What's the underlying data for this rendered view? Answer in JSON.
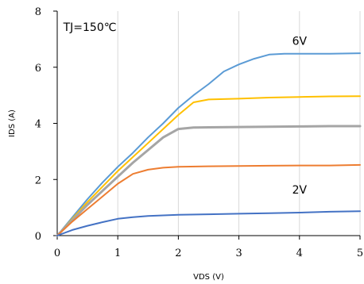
{
  "chart_data": {
    "type": "line",
    "xlabel": "VDS (V)",
    "ylabel": "IDS (A)",
    "xlim": [
      0,
      5
    ],
    "ylim": [
      0,
      8
    ],
    "x_ticks": [
      "0",
      "1",
      "2",
      "3",
      "4",
      "5"
    ],
    "y_ticks": [
      "0",
      "2",
      "4",
      "6",
      "8"
    ],
    "grid": "vertical",
    "annotations": [
      {
        "text": "TJ=150℃",
        "x": 0.1,
        "y": 7.3
      },
      {
        "text": "6V",
        "x": 3.88,
        "y": 6.8
      },
      {
        "text": "2V",
        "x": 3.88,
        "y": 1.5
      }
    ],
    "series": [
      {
        "color": "#5b9bd5",
        "width": 2,
        "x": [
          0,
          0.25,
          0.5,
          0.75,
          1,
          1.25,
          1.5,
          1.75,
          2,
          2.25,
          2.5,
          2.75,
          3,
          3.25,
          3.5,
          3.75,
          4,
          4.5,
          5
        ],
        "y": [
          0,
          0.65,
          1.3,
          1.9,
          2.45,
          2.95,
          3.5,
          4.0,
          4.55,
          5.0,
          5.4,
          5.85,
          6.1,
          6.3,
          6.45,
          6.48,
          6.48,
          6.48,
          6.5
        ]
      },
      {
        "color": "#ffc000",
        "width": 2,
        "x": [
          0,
          0.25,
          0.5,
          0.75,
          1,
          1.25,
          1.5,
          1.75,
          2,
          2.25,
          2.5,
          3,
          3.5,
          4,
          4.5,
          5
        ],
        "y": [
          0,
          0.6,
          1.2,
          1.75,
          2.3,
          2.8,
          3.3,
          3.8,
          4.3,
          4.75,
          4.85,
          4.88,
          4.92,
          4.94,
          4.96,
          4.97
        ]
      },
      {
        "color": "#a5a5a5",
        "width": 3,
        "x": [
          0,
          0.25,
          0.5,
          0.75,
          1,
          1.25,
          1.5,
          1.75,
          2,
          2.25,
          2.5,
          3,
          3.5,
          4,
          4.5,
          5
        ],
        "y": [
          0,
          0.55,
          1.1,
          1.6,
          2.1,
          2.6,
          3.05,
          3.5,
          3.8,
          3.85,
          3.86,
          3.87,
          3.88,
          3.89,
          3.9,
          3.9
        ]
      },
      {
        "color": "#ed7d31",
        "width": 2,
        "x": [
          0,
          0.25,
          0.5,
          0.75,
          1,
          1.25,
          1.5,
          1.75,
          2,
          2.5,
          3,
          3.5,
          4,
          4.5,
          5
        ],
        "y": [
          0,
          0.5,
          0.95,
          1.4,
          1.85,
          2.2,
          2.35,
          2.42,
          2.45,
          2.47,
          2.48,
          2.49,
          2.5,
          2.5,
          2.52
        ]
      },
      {
        "color": "#4472c4",
        "width": 2,
        "x": [
          0,
          0.25,
          0.5,
          0.75,
          1,
          1.25,
          1.5,
          2,
          2.5,
          3,
          3.5,
          4,
          4.5,
          5
        ],
        "y": [
          0,
          0.2,
          0.35,
          0.48,
          0.6,
          0.66,
          0.7,
          0.74,
          0.76,
          0.78,
          0.8,
          0.82,
          0.85,
          0.87
        ]
      }
    ]
  }
}
